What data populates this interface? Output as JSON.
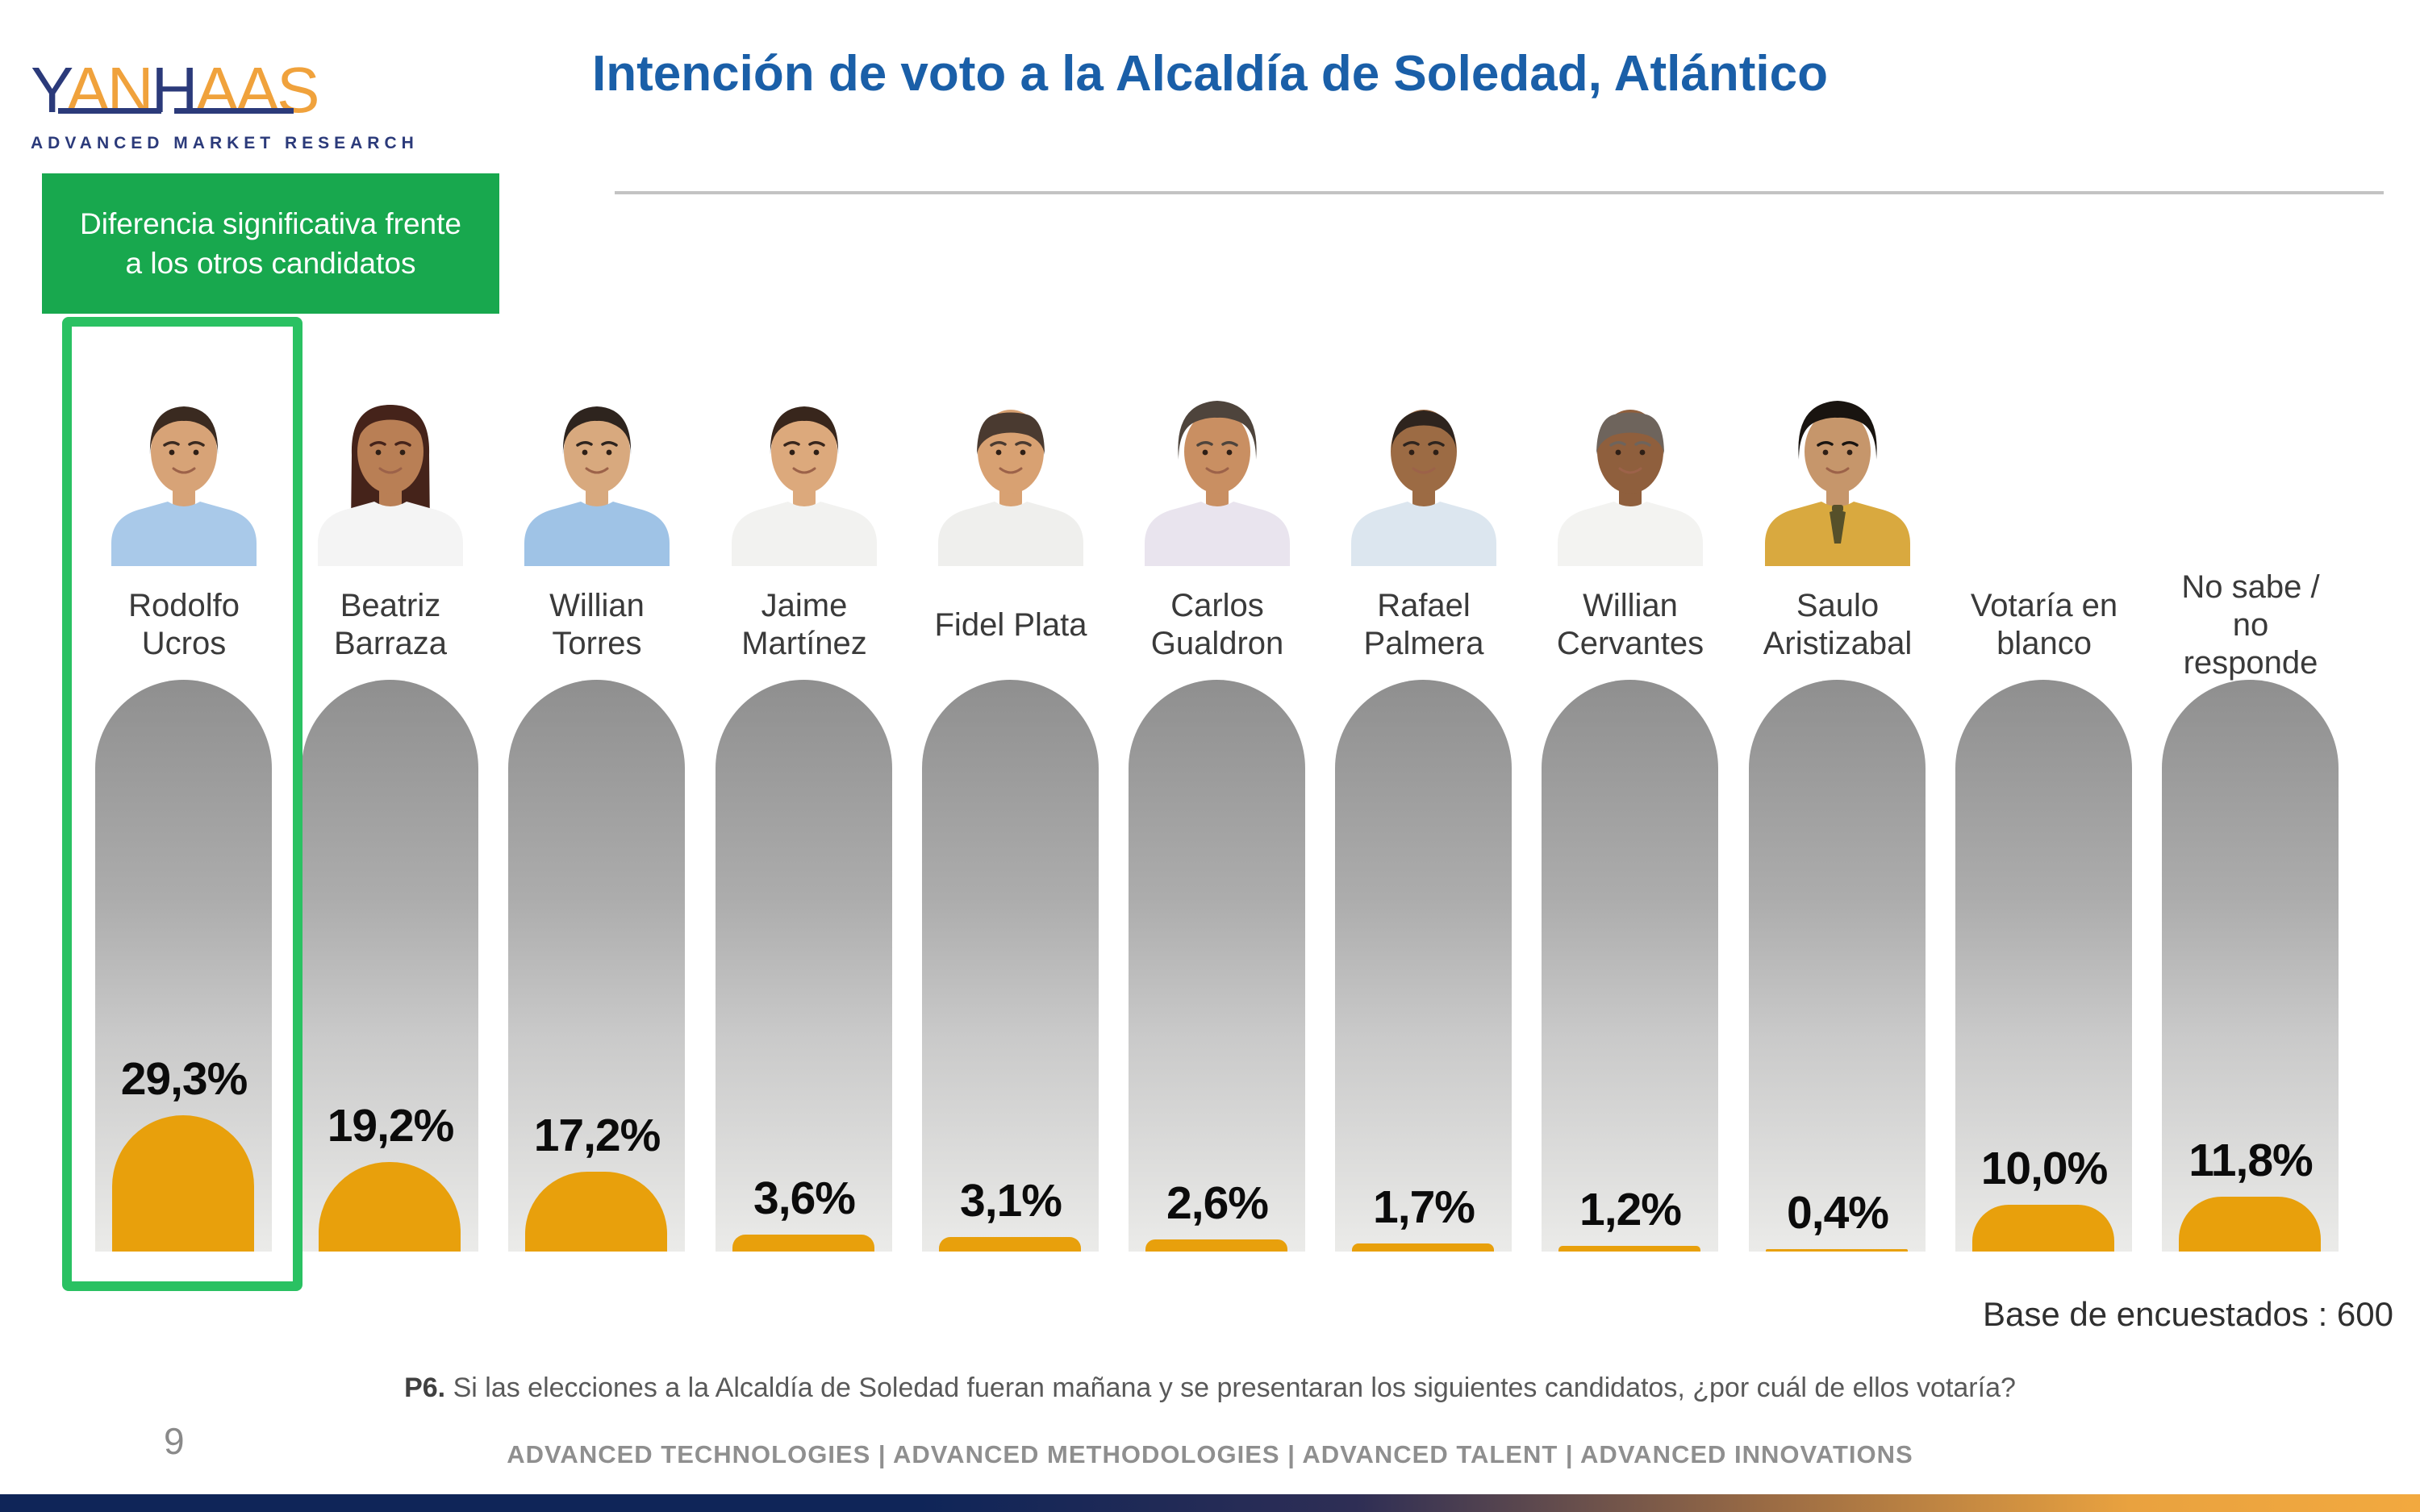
{
  "slide": {
    "logo": {
      "part1": "Y",
      "part2": "AN",
      "part3": "H",
      "part4": "AAS",
      "tagline": "ADVANCED MARKET RESEARCH",
      "navy": "#2B3A7A",
      "orange": "#F0A23C"
    },
    "title": "Intención de voto a la Alcaldía de Soledad, Atlántico",
    "title_color": "#1A5FA8",
    "callout": {
      "text": "Diferencia significativa frente a los otros candidatos",
      "bg": "#18A84E",
      "highlight_border": "#2AC162"
    },
    "base_note": "Base de encuestados : 600",
    "question": {
      "label": "P6.",
      "text": " Si las elecciones a la Alcaldía de Soledad fueran mañana y se presentaran los siguientes candidatos, ¿por cuál de ellos votaría?"
    },
    "page_number": "9",
    "footer": "ADVANCED TECHNOLOGIES   |   ADVANCED METHODOLOGIES   |   ADVANCED TALENT   |   ADVANCED INNOVATIONS",
    "colors": {
      "bar_orange": "#E8A00C",
      "tube_top": "#8F8F8F",
      "tube_bottom": "#EBEBE9",
      "stripe_navy": "#0F2558",
      "stripe_orange": "#F2A93F"
    }
  },
  "chart_data": {
    "type": "bar",
    "title": "Intención de voto a la Alcaldía de Soledad, Atlántico",
    "categories": [
      "Rodolfo Ucros",
      "Beatriz Barraza",
      "Willian Torres",
      "Jaime Martínez",
      "Fidel Plata",
      "Carlos Gualdron",
      "Rafael Palmera",
      "Willian Cervantes",
      "Saulo Aristizabal",
      "Votaría en blanco",
      "No sabe / no responde"
    ],
    "values": [
      29.3,
      19.2,
      17.2,
      3.6,
      3.1,
      2.6,
      1.7,
      1.2,
      0.4,
      10.0,
      11.8
    ],
    "value_labels": [
      "29,3%",
      "19,2%",
      "17,2%",
      "3,6%",
      "3,1%",
      "2,6%",
      "1,7%",
      "1,2%",
      "0,4%",
      "10,0%",
      "11,8%"
    ],
    "unit": "%",
    "ylim": [
      0,
      100
    ],
    "grid": false,
    "legend": null,
    "base_n": 600,
    "highlighted_category": "Rodolfo Ucros",
    "annotations": [
      "Diferencia significativa frente a los otros candidatos",
      "Base de encuestados : 600"
    ]
  },
  "columns": [
    {
      "name_lines": [
        "Rodolfo",
        "Ucros"
      ],
      "label": "29,3%",
      "value": 29.3,
      "highlighted": true,
      "photo": {
        "style": "short",
        "skin": "#D7A377",
        "hair": "#3A2A20",
        "shirt": "#A9C9E9"
      }
    },
    {
      "name_lines": [
        "Beatriz",
        "Barraza"
      ],
      "label": "19,2%",
      "value": 19.2,
      "highlighted": false,
      "photo": {
        "style": "female",
        "skin": "#B97F55",
        "hair": "#45231A",
        "shirt": "#F4F4F4"
      }
    },
    {
      "name_lines": [
        "Willian",
        "Torres"
      ],
      "label": "17,2%",
      "value": 17.2,
      "highlighted": false,
      "photo": {
        "style": "short",
        "skin": "#D8A97E",
        "hair": "#2E241E",
        "shirt": "#9FC3E6"
      }
    },
    {
      "name_lines": [
        "Jaime",
        "Martínez"
      ],
      "label": "3,6%",
      "value": 3.6,
      "highlighted": false,
      "photo": {
        "style": "short",
        "skin": "#DCA97C",
        "hair": "#38261C",
        "shirt": "#F2F2F0"
      }
    },
    {
      "name_lines": [
        "Fidel Plata"
      ],
      "label": "3,1%",
      "value": 3.1,
      "highlighted": false,
      "photo": {
        "style": "receding",
        "skin": "#D8A172",
        "hair": "#4A3A30",
        "shirt": "#EFEFED"
      }
    },
    {
      "name_lines": [
        "Carlos",
        "Gualdron"
      ],
      "label": "2,6%",
      "value": 2.6,
      "highlighted": false,
      "photo": {
        "style": "bushy",
        "skin": "#C98F62",
        "hair": "#4E443C",
        "shirt": "#E9E4EE"
      }
    },
    {
      "name_lines": [
        "Rafael",
        "Palmera"
      ],
      "label": "1,7%",
      "value": 1.7,
      "highlighted": false,
      "photo": {
        "style": "buzz",
        "skin": "#9C6B44",
        "hair": "#2E241E",
        "shirt": "#DCE6EF"
      }
    },
    {
      "name_lines": [
        "Willian",
        "Cervantes"
      ],
      "label": "1,2%",
      "value": 1.2,
      "highlighted": false,
      "photo": {
        "style": "receding",
        "skin": "#8F5F3D",
        "hair": "#6E645C",
        "shirt": "#F3F3F1"
      }
    },
    {
      "name_lines": [
        "Saulo",
        "Aristizabal"
      ],
      "label": "0,4%",
      "value": 0.4,
      "highlighted": false,
      "photo": {
        "style": "bushy",
        "skin": "#C6966B",
        "hair": "#191410",
        "shirt": "#D9A93F",
        "tie": "#56502A"
      }
    },
    {
      "name_lines": [
        "Votaría en",
        "blanco"
      ],
      "label": "10,0%",
      "value": 10.0,
      "highlighted": false,
      "photo": null
    },
    {
      "name_lines": [
        "No sabe /",
        "no",
        "responde"
      ],
      "label": "11,8%",
      "value": 11.8,
      "highlighted": false,
      "photo": null
    }
  ]
}
